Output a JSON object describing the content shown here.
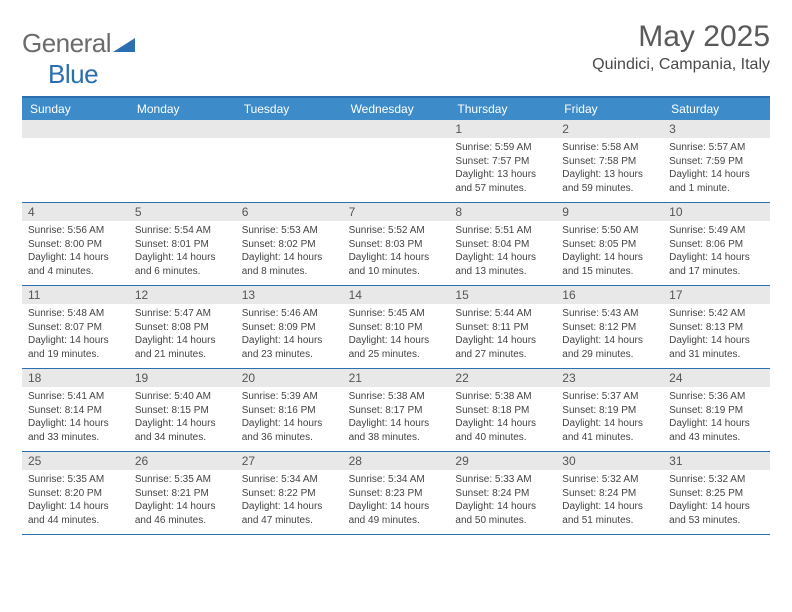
{
  "logo": {
    "text1": "General",
    "text2": "Blue"
  },
  "title": "May 2025",
  "location": "Quindici, Campania, Italy",
  "colors": {
    "header_bg": "#3d8bc9",
    "header_border": "#2b6fb0",
    "daynum_bg": "#e8e8e8",
    "text": "#444444"
  },
  "day_labels": [
    "Sunday",
    "Monday",
    "Tuesday",
    "Wednesday",
    "Thursday",
    "Friday",
    "Saturday"
  ],
  "weeks": [
    [
      {
        "n": "",
        "lines": []
      },
      {
        "n": "",
        "lines": []
      },
      {
        "n": "",
        "lines": []
      },
      {
        "n": "",
        "lines": []
      },
      {
        "n": "1",
        "lines": [
          "Sunrise: 5:59 AM",
          "Sunset: 7:57 PM",
          "Daylight: 13 hours",
          "and 57 minutes."
        ]
      },
      {
        "n": "2",
        "lines": [
          "Sunrise: 5:58 AM",
          "Sunset: 7:58 PM",
          "Daylight: 13 hours",
          "and 59 minutes."
        ]
      },
      {
        "n": "3",
        "lines": [
          "Sunrise: 5:57 AM",
          "Sunset: 7:59 PM",
          "Daylight: 14 hours",
          "and 1 minute."
        ]
      }
    ],
    [
      {
        "n": "4",
        "lines": [
          "Sunrise: 5:56 AM",
          "Sunset: 8:00 PM",
          "Daylight: 14 hours",
          "and 4 minutes."
        ]
      },
      {
        "n": "5",
        "lines": [
          "Sunrise: 5:54 AM",
          "Sunset: 8:01 PM",
          "Daylight: 14 hours",
          "and 6 minutes."
        ]
      },
      {
        "n": "6",
        "lines": [
          "Sunrise: 5:53 AM",
          "Sunset: 8:02 PM",
          "Daylight: 14 hours",
          "and 8 minutes."
        ]
      },
      {
        "n": "7",
        "lines": [
          "Sunrise: 5:52 AM",
          "Sunset: 8:03 PM",
          "Daylight: 14 hours",
          "and 10 minutes."
        ]
      },
      {
        "n": "8",
        "lines": [
          "Sunrise: 5:51 AM",
          "Sunset: 8:04 PM",
          "Daylight: 14 hours",
          "and 13 minutes."
        ]
      },
      {
        "n": "9",
        "lines": [
          "Sunrise: 5:50 AM",
          "Sunset: 8:05 PM",
          "Daylight: 14 hours",
          "and 15 minutes."
        ]
      },
      {
        "n": "10",
        "lines": [
          "Sunrise: 5:49 AM",
          "Sunset: 8:06 PM",
          "Daylight: 14 hours",
          "and 17 minutes."
        ]
      }
    ],
    [
      {
        "n": "11",
        "lines": [
          "Sunrise: 5:48 AM",
          "Sunset: 8:07 PM",
          "Daylight: 14 hours",
          "and 19 minutes."
        ]
      },
      {
        "n": "12",
        "lines": [
          "Sunrise: 5:47 AM",
          "Sunset: 8:08 PM",
          "Daylight: 14 hours",
          "and 21 minutes."
        ]
      },
      {
        "n": "13",
        "lines": [
          "Sunrise: 5:46 AM",
          "Sunset: 8:09 PM",
          "Daylight: 14 hours",
          "and 23 minutes."
        ]
      },
      {
        "n": "14",
        "lines": [
          "Sunrise: 5:45 AM",
          "Sunset: 8:10 PM",
          "Daylight: 14 hours",
          "and 25 minutes."
        ]
      },
      {
        "n": "15",
        "lines": [
          "Sunrise: 5:44 AM",
          "Sunset: 8:11 PM",
          "Daylight: 14 hours",
          "and 27 minutes."
        ]
      },
      {
        "n": "16",
        "lines": [
          "Sunrise: 5:43 AM",
          "Sunset: 8:12 PM",
          "Daylight: 14 hours",
          "and 29 minutes."
        ]
      },
      {
        "n": "17",
        "lines": [
          "Sunrise: 5:42 AM",
          "Sunset: 8:13 PM",
          "Daylight: 14 hours",
          "and 31 minutes."
        ]
      }
    ],
    [
      {
        "n": "18",
        "lines": [
          "Sunrise: 5:41 AM",
          "Sunset: 8:14 PM",
          "Daylight: 14 hours",
          "and 33 minutes."
        ]
      },
      {
        "n": "19",
        "lines": [
          "Sunrise: 5:40 AM",
          "Sunset: 8:15 PM",
          "Daylight: 14 hours",
          "and 34 minutes."
        ]
      },
      {
        "n": "20",
        "lines": [
          "Sunrise: 5:39 AM",
          "Sunset: 8:16 PM",
          "Daylight: 14 hours",
          "and 36 minutes."
        ]
      },
      {
        "n": "21",
        "lines": [
          "Sunrise: 5:38 AM",
          "Sunset: 8:17 PM",
          "Daylight: 14 hours",
          "and 38 minutes."
        ]
      },
      {
        "n": "22",
        "lines": [
          "Sunrise: 5:38 AM",
          "Sunset: 8:18 PM",
          "Daylight: 14 hours",
          "and 40 minutes."
        ]
      },
      {
        "n": "23",
        "lines": [
          "Sunrise: 5:37 AM",
          "Sunset: 8:19 PM",
          "Daylight: 14 hours",
          "and 41 minutes."
        ]
      },
      {
        "n": "24",
        "lines": [
          "Sunrise: 5:36 AM",
          "Sunset: 8:19 PM",
          "Daylight: 14 hours",
          "and 43 minutes."
        ]
      }
    ],
    [
      {
        "n": "25",
        "lines": [
          "Sunrise: 5:35 AM",
          "Sunset: 8:20 PM",
          "Daylight: 14 hours",
          "and 44 minutes."
        ]
      },
      {
        "n": "26",
        "lines": [
          "Sunrise: 5:35 AM",
          "Sunset: 8:21 PM",
          "Daylight: 14 hours",
          "and 46 minutes."
        ]
      },
      {
        "n": "27",
        "lines": [
          "Sunrise: 5:34 AM",
          "Sunset: 8:22 PM",
          "Daylight: 14 hours",
          "and 47 minutes."
        ]
      },
      {
        "n": "28",
        "lines": [
          "Sunrise: 5:34 AM",
          "Sunset: 8:23 PM",
          "Daylight: 14 hours",
          "and 49 minutes."
        ]
      },
      {
        "n": "29",
        "lines": [
          "Sunrise: 5:33 AM",
          "Sunset: 8:24 PM",
          "Daylight: 14 hours",
          "and 50 minutes."
        ]
      },
      {
        "n": "30",
        "lines": [
          "Sunrise: 5:32 AM",
          "Sunset: 8:24 PM",
          "Daylight: 14 hours",
          "and 51 minutes."
        ]
      },
      {
        "n": "31",
        "lines": [
          "Sunrise: 5:32 AM",
          "Sunset: 8:25 PM",
          "Daylight: 14 hours",
          "and 53 minutes."
        ]
      }
    ]
  ]
}
